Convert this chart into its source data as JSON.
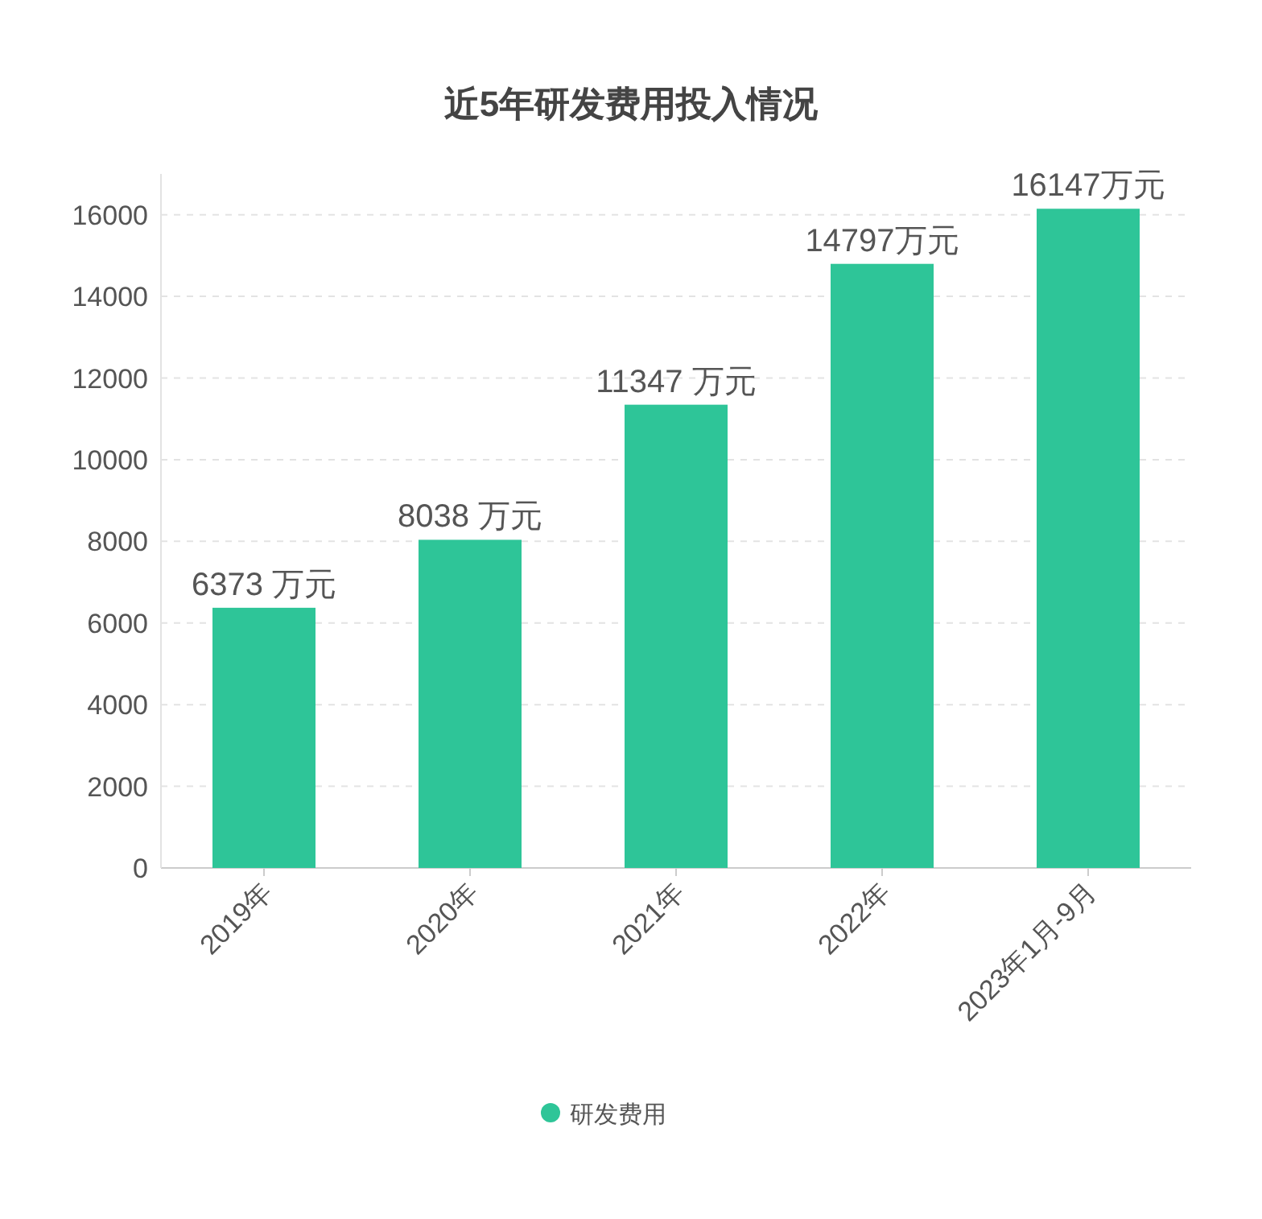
{
  "chart_data": {
    "type": "bar",
    "title": "近5年研发费用投入情况",
    "categories": [
      "2019年",
      "2020年",
      "2021年",
      "2022年",
      "2023年1月-9月"
    ],
    "series": [
      {
        "name": "研发费用",
        "color": "#2ec598",
        "values": [
          6373,
          8038,
          11347,
          14797,
          16147
        ],
        "value_labels": [
          "6373 万元",
          "8038 万元",
          "11347 万元",
          "14797万元",
          "16147万元"
        ]
      }
    ],
    "ylim": [
      0,
      17000
    ],
    "yticks": [
      0,
      2000,
      4000,
      6000,
      8000,
      10000,
      12000,
      14000,
      16000
    ],
    "grid": "y",
    "legend": "bottom",
    "marker": "circle"
  }
}
